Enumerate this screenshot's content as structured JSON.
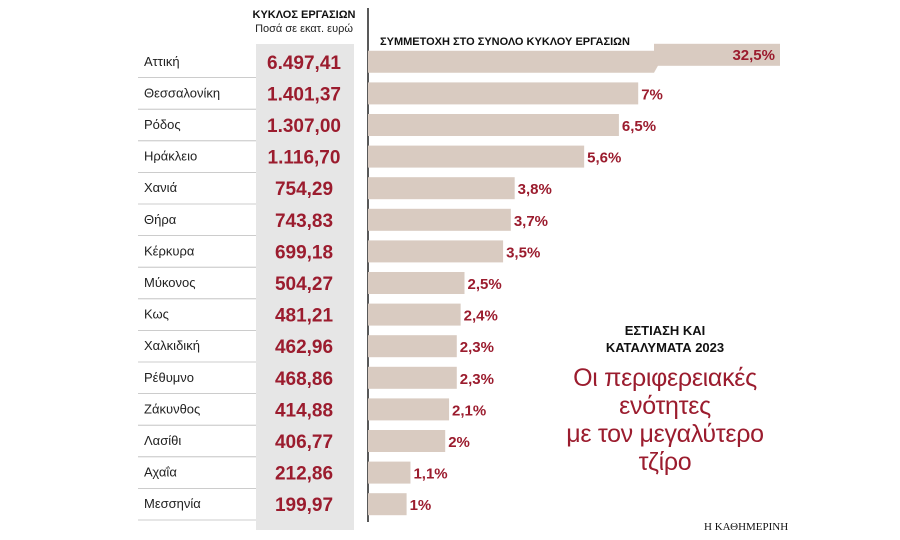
{
  "col_header": {
    "title": "ΚΥΚΛΟΣ ΕΡΓΑΣΙΩΝ",
    "subtitle": "Ποσά σε εκατ. ευρώ"
  },
  "bar_header": "ΣΥΜΜΕΤΟΧΗ ΣΤΟ ΣΥΝΟΛΟ ΚΥΚΛΟΥ ΕΡΓΑΣΙΩΝ",
  "kicker_line1": "ΕΣΤΙΑΣΗ ΚΑΙ",
  "kicker_line2": "ΚΑΤΑΛΥΜΑΤΑ 2023",
  "headline_line1": "Οι περιφερειακές",
  "headline_line2": "ενότητες",
  "headline_line3": "με τον μεγαλύτερο",
  "headline_line4": "τζίρο",
  "credit": "Η ΚΑΘΗΜΕΡΙΝΗ",
  "colors": {
    "accent": "#9b1c2e",
    "bar": "#d9cbc1",
    "column_bg": "#e6e6e6"
  },
  "chart_data": {
    "type": "bar",
    "orientation": "horizontal",
    "categories": [
      "Αττική",
      "Θεσσαλονίκη",
      "Ρόδος",
      "Ηράκλειο",
      "Χανιά",
      "Θήρα",
      "Κέρκυρα",
      "Μύκονος",
      "Κως",
      "Χαλκιδική",
      "Ρέθυμνο",
      "Ζάκυνθος",
      "Λασίθι",
      "Αχαΐα",
      "Μεσσηνία"
    ],
    "turnover_labels": [
      "6.497,41",
      "1.401,37",
      "1.307,00",
      "1.116,70",
      "754,29",
      "743,83",
      "699,18",
      "504,27",
      "481,21",
      "462,96",
      "468,86",
      "414,88",
      "406,77",
      "212,86",
      "199,97"
    ],
    "turnover_values": [
      6497.41,
      1401.37,
      1307.0,
      1116.7,
      754.29,
      743.83,
      699.18,
      504.27,
      481.21,
      462.96,
      468.86,
      414.88,
      406.77,
      212.86,
      199.97
    ],
    "share_labels": [
      "32,5%",
      "7%",
      "6,5%",
      "5,6%",
      "3,8%",
      "3,7%",
      "3,5%",
      "2,5%",
      "2,4%",
      "2,3%",
      "2,3%",
      "2,1%",
      "2%",
      "1,1%",
      "1%"
    ],
    "share_values": [
      32.5,
      7,
      6.5,
      5.6,
      3.8,
      3.7,
      3.5,
      2.5,
      2.4,
      2.3,
      2.3,
      2.1,
      2,
      1.1,
      1
    ],
    "broken_axis_first_bar": true
  }
}
